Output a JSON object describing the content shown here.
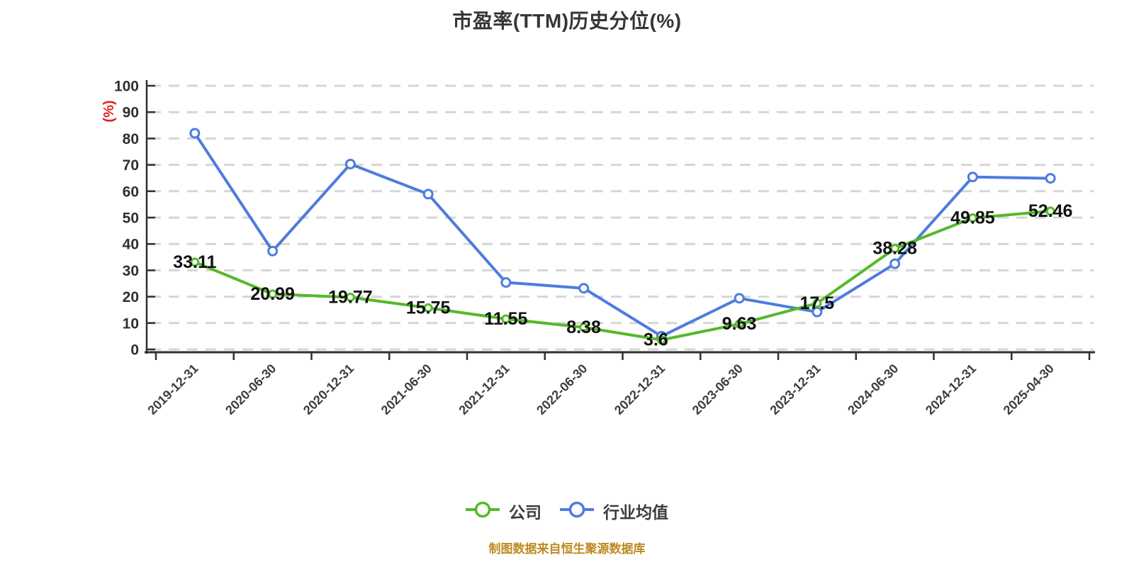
{
  "title": "市盈率(TTM)历史分位(%)",
  "y_axis_unit_label": "(%)",
  "footer": {
    "source_note": "制图数据来自恒生聚源数据库"
  },
  "legend": [
    {
      "label": "公司",
      "color": "#55b92a"
    },
    {
      "label": "行业均值",
      "color": "#4e7cdd"
    }
  ],
  "colors": {
    "company_line": "#55b92a",
    "industry_line": "#4e7cdd",
    "gridline": "#d6d6d6",
    "axis": "#303030",
    "axis_tick_label": "#2f2f2f",
    "date_label": "#3d3d3d",
    "value_label": "#111111",
    "title_text": "#363636",
    "y_unit_red": "#e22020",
    "footer_orange": "#bd8a1f",
    "marker_fill": "#ffffff"
  },
  "chart_data": {
    "type": "line",
    "title": "市盈率(TTM)历史分位(%)",
    "xlabel": "",
    "ylabel": "(%)",
    "ylim": [
      0,
      100
    ],
    "y_ticks": [
      0,
      10,
      20,
      30,
      40,
      50,
      60,
      70,
      80,
      90,
      100
    ],
    "grid": "horizontal-dashed",
    "legend_position": "bottom",
    "categories": [
      "2019-12-31",
      "2020-06-30",
      "2020-12-31",
      "2021-06-30",
      "2021-12-31",
      "2022-06-30",
      "2022-12-31",
      "2023-06-30",
      "2023-12-31",
      "2024-06-30",
      "2024-12-31",
      "2025-04-30"
    ],
    "series": [
      {
        "name": "公司",
        "color": "#55b92a",
        "labels_shown": true,
        "values": [
          33.11,
          20.99,
          19.77,
          15.75,
          11.55,
          8.38,
          3.6,
          9.63,
          17.5,
          38.28,
          49.85,
          52.46
        ]
      },
      {
        "name": "行业均值",
        "color": "#4e7cdd",
        "labels_shown": false,
        "values": [
          82,
          37.3,
          70.3,
          58.9,
          25.4,
          23.2,
          5,
          19.4,
          14.2,
          32.5,
          65.4,
          64.9
        ]
      }
    ]
  }
}
